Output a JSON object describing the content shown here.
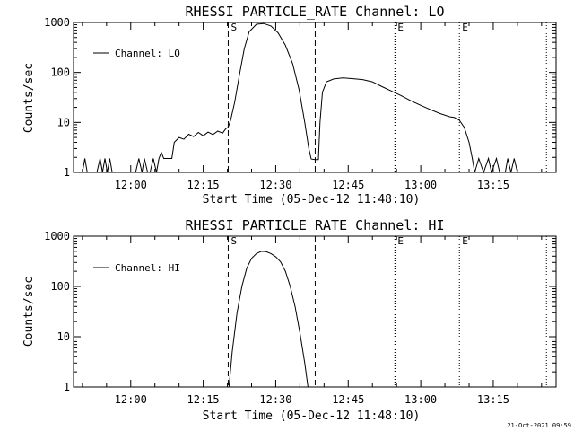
{
  "chart_data": [
    {
      "type": "line",
      "title": "RHESSI PARTICLE_RATE Channel: LO",
      "xlabel": "Start Time (05-Dec-12 11:48:10)",
      "ylabel": "Counts/sec",
      "yscale": "log",
      "ylim": [
        1,
        1000
      ],
      "xlim": [
        "11:48:10",
        "13:28:00"
      ],
      "grid": false,
      "legend": "top-left",
      "x_tick_labels": [
        "12:00",
        "12:15",
        "12:30",
        "12:45",
        "13:00",
        "13:15"
      ],
      "y_tick_labels": [
        "1",
        "10",
        "100",
        "1000"
      ],
      "markers": [
        {
          "label": "E",
          "time": "12:54:40",
          "style": "dotted"
        },
        {
          "label": "S",
          "time": "12:20:10",
          "style": "dashed"
        },
        {
          "label": "",
          "time": "12:38:10",
          "style": "dashed"
        },
        {
          "label": "",
          "time": "12:54:40",
          "style": "dotted"
        },
        {
          "label": "E",
          "time": "13:08:00",
          "style": "dotted"
        },
        {
          "label": "",
          "time": "13:26:00",
          "style": "dotted"
        }
      ],
      "series": [
        {
          "name": "Channel: LO",
          "color": "#000000",
          "points": [
            [
              "11:48:10",
              1
            ],
            [
              "11:50:00",
              1
            ],
            [
              "11:50:30",
              1.9
            ],
            [
              "11:51:00",
              1
            ],
            [
              "11:53:00",
              1
            ],
            [
              "11:53:40",
              1.9
            ],
            [
              "11:54:10",
              1
            ],
            [
              "11:54:40",
              1.9
            ],
            [
              "11:55:10",
              1
            ],
            [
              "11:55:40",
              1.9
            ],
            [
              "11:56:10",
              1
            ],
            [
              "11:59:20",
              1
            ],
            [
              "12:00:00",
              1
            ],
            [
              "12:01:00",
              1
            ],
            [
              "12:01:40",
              1.9
            ],
            [
              "12:02:20",
              1
            ],
            [
              "12:02:50",
              1.9
            ],
            [
              "12:03:30",
              1
            ],
            [
              "12:04:00",
              1
            ],
            [
              "12:04:40",
              1.9
            ],
            [
              "12:05:20",
              1
            ],
            [
              "12:05:50",
              1.9
            ],
            [
              "12:06:20",
              2.5
            ],
            [
              "12:06:50",
              1.9
            ],
            [
              "12:08:30",
              1.9
            ],
            [
              "12:09:00",
              4
            ],
            [
              "12:10:00",
              5
            ],
            [
              "12:11:00",
              4.6
            ],
            [
              "12:12:00",
              5.8
            ],
            [
              "12:13:00",
              5.2
            ],
            [
              "12:14:00",
              6.3
            ],
            [
              "12:15:00",
              5.4
            ],
            [
              "12:16:00",
              6.4
            ],
            [
              "12:17:00",
              5.7
            ],
            [
              "12:18:00",
              6.7
            ],
            [
              "12:19:00",
              6.1
            ],
            [
              "12:19:40",
              7.5
            ],
            [
              "12:20:10",
              8
            ],
            [
              "12:20:40",
              11
            ],
            [
              "12:21:30",
              25
            ],
            [
              "12:22:30",
              90
            ],
            [
              "12:23:30",
              300
            ],
            [
              "12:24:30",
              650
            ],
            [
              "12:26:00",
              920
            ],
            [
              "12:27:30",
              950
            ],
            [
              "12:29:00",
              850
            ],
            [
              "12:30:30",
              620
            ],
            [
              "12:32:00",
              350
            ],
            [
              "12:33:30",
              150
            ],
            [
              "12:34:50",
              45
            ],
            [
              "12:36:00",
              10
            ],
            [
              "12:36:50",
              3
            ],
            [
              "12:37:20",
              1.85
            ],
            [
              "12:38:10",
              1.8
            ],
            [
              "12:38:50",
              1.8
            ],
            [
              "12:39:10",
              10
            ],
            [
              "12:39:40",
              40
            ],
            [
              "12:40:30",
              65
            ],
            [
              "12:42:00",
              74
            ],
            [
              "12:44:00",
              78
            ],
            [
              "12:46:00",
              75
            ],
            [
              "12:48:00",
              72
            ],
            [
              "12:50:00",
              65
            ],
            [
              "12:52:00",
              52
            ],
            [
              "12:54:00",
              42
            ],
            [
              "12:56:00",
              34
            ],
            [
              "12:58:00",
              27
            ],
            [
              "13:00:00",
              22
            ],
            [
              "13:02:00",
              18
            ],
            [
              "13:04:00",
              15
            ],
            [
              "13:06:00",
              13
            ],
            [
              "13:07:00",
              12.5
            ],
            [
              "13:08:00",
              11
            ],
            [
              "13:09:00",
              8
            ],
            [
              "13:10:00",
              4
            ],
            [
              "13:10:40",
              1.9
            ],
            [
              "13:11:10",
              1
            ],
            [
              "13:12:00",
              1.9
            ],
            [
              "13:13:00",
              1
            ],
            [
              "13:14:00",
              1.9
            ],
            [
              "13:14:40",
              1
            ],
            [
              "13:15:40",
              1.9
            ],
            [
              "13:16:20",
              1
            ],
            [
              "13:17:30",
              1
            ],
            [
              "13:18:00",
              1.9
            ],
            [
              "13:18:40",
              1
            ],
            [
              "13:19:20",
              1.9
            ],
            [
              "13:20:00",
              1
            ],
            [
              "13:28:00",
              1
            ]
          ]
        }
      ]
    },
    {
      "type": "line",
      "title": "RHESSI PARTICLE_RATE Channel: HI",
      "xlabel": "Start Time (05-Dec-12 11:48:10)",
      "ylabel": "Counts/sec",
      "yscale": "log",
      "ylim": [
        1,
        1000
      ],
      "xlim": [
        "11:48:10",
        "13:28:00"
      ],
      "grid": false,
      "legend": "top-left",
      "x_tick_labels": [
        "12:00",
        "12:15",
        "12:30",
        "12:45",
        "13:00",
        "13:15"
      ],
      "y_tick_labels": [
        "1",
        "10",
        "100",
        "1000"
      ],
      "markers": [
        {
          "label": "E",
          "time": "12:54:40",
          "style": "dotted"
        },
        {
          "label": "S",
          "time": "12:20:10",
          "style": "dashed"
        },
        {
          "label": "",
          "time": "12:38:10",
          "style": "dashed"
        },
        {
          "label": "",
          "time": "12:54:40",
          "style": "dotted"
        },
        {
          "label": "E",
          "time": "13:08:00",
          "style": "dotted"
        },
        {
          "label": "",
          "time": "13:26:00",
          "style": "dotted"
        }
      ],
      "series": [
        {
          "name": "Channel: HI",
          "color": "#000000",
          "points": [
            [
              "12:20:20",
              1
            ],
            [
              "12:21:00",
              5
            ],
            [
              "12:22:00",
              30
            ],
            [
              "12:23:00",
              100
            ],
            [
              "12:24:00",
              230
            ],
            [
              "12:25:00",
              360
            ],
            [
              "12:26:00",
              450
            ],
            [
              "12:27:00",
              500
            ],
            [
              "12:28:00",
              490
            ],
            [
              "12:29:00",
              450
            ],
            [
              "12:30:00",
              390
            ],
            [
              "12:31:00",
              310
            ],
            [
              "12:32:00",
              200
            ],
            [
              "12:33:00",
              100
            ],
            [
              "12:34:00",
              40
            ],
            [
              "12:35:00",
              12
            ],
            [
              "12:36:00",
              3
            ],
            [
              "12:36:40",
              1
            ]
          ]
        }
      ]
    }
  ],
  "footer": {
    "timestamp": "21-Oct-2021 09:59"
  }
}
